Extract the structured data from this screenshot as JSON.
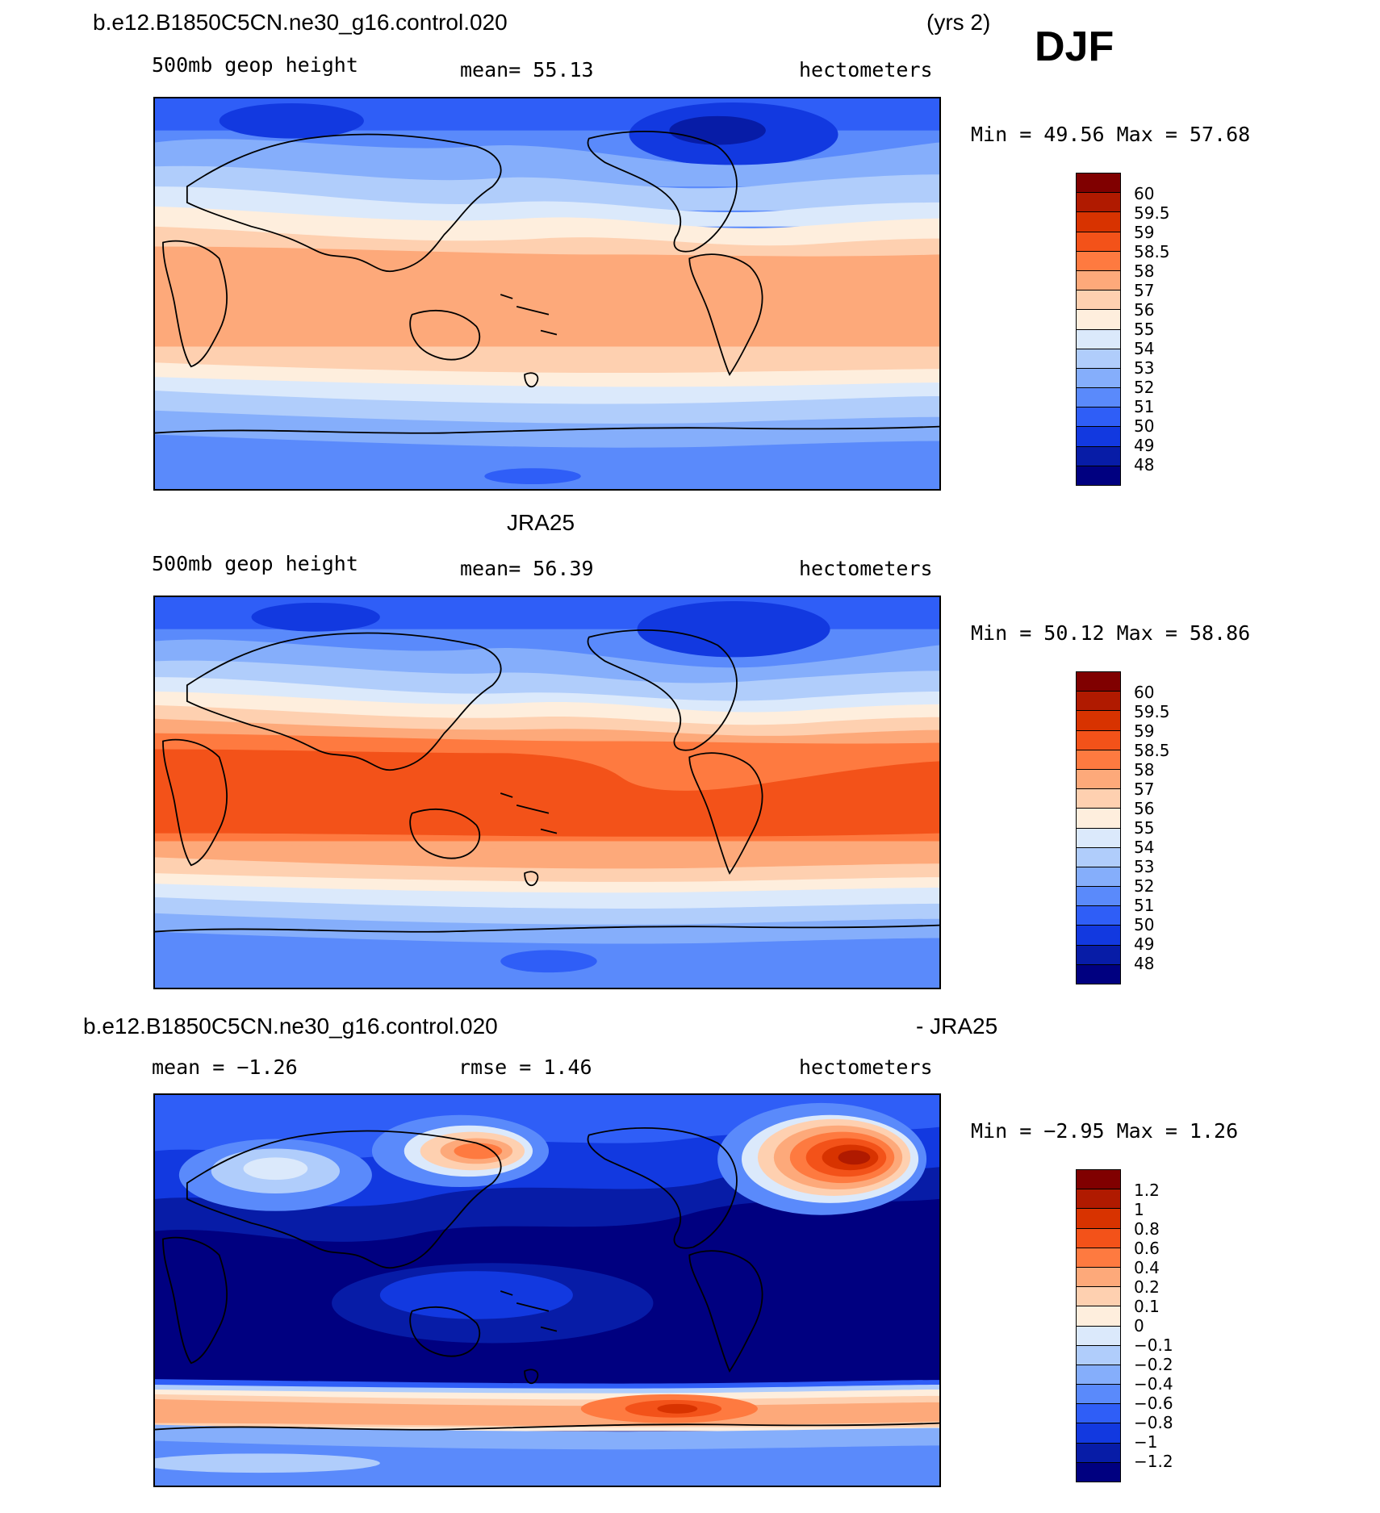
{
  "season": "DJF",
  "panel1": {
    "case": "b.e12.B1850C5CN.ne30_g16.control.020",
    "years": "(yrs 2)",
    "variable": "500mb geop height",
    "mean_text": "mean=   55.13",
    "units": "hectometers",
    "minmax": "Min =   49.56  Max =   57.68"
  },
  "panel2": {
    "case": "JRA25",
    "variable": "500mb geop height",
    "mean_text": "mean=   56.39",
    "units": "hectometers",
    "minmax": "Min =   50.12  Max =   58.86"
  },
  "panel3": {
    "case": "b.e12.B1850C5CN.ne30_g16.control.020",
    "diff_label": "- JRA25",
    "mean_text": "mean =   −1.26",
    "rmse_text": "rmse =     1.46",
    "units": "hectometers",
    "minmax": "Min =   −2.95  Max =     1.26"
  },
  "colorbar_height": {
    "labels": [
      "60",
      "59.5",
      "59",
      "58.5",
      "58",
      "57",
      "56",
      "55",
      "54",
      "53",
      "52",
      "51",
      "50",
      "49",
      "48"
    ],
    "colors": [
      "#800000",
      "#b01a00",
      "#d83300",
      "#f35219",
      "#fe7a40",
      "#fda97a",
      "#fed0b0",
      "#feeedd",
      "#dbe9fb",
      "#b0cdfb",
      "#85aefb",
      "#5a8afb",
      "#2f5ef7",
      "#1239e0",
      "#071ca7",
      "#000080"
    ]
  },
  "colorbar_diff": {
    "labels": [
      "1.2",
      "1",
      "0.8",
      "0.6",
      "0.4",
      "0.2",
      "0.1",
      "0",
      "−0.1",
      "−0.2",
      "−0.4",
      "−0.6",
      "−0.8",
      "−1",
      "−1.2"
    ],
    "colors": [
      "#800000",
      "#b01a00",
      "#d83300",
      "#f35219",
      "#fe7a40",
      "#fda97a",
      "#fed0b0",
      "#feeedd",
      "#dbe9fb",
      "#b0cdfb",
      "#85aefb",
      "#5a8afb",
      "#2f5ef7",
      "#1239e0",
      "#071ca7",
      "#000080"
    ]
  }
}
